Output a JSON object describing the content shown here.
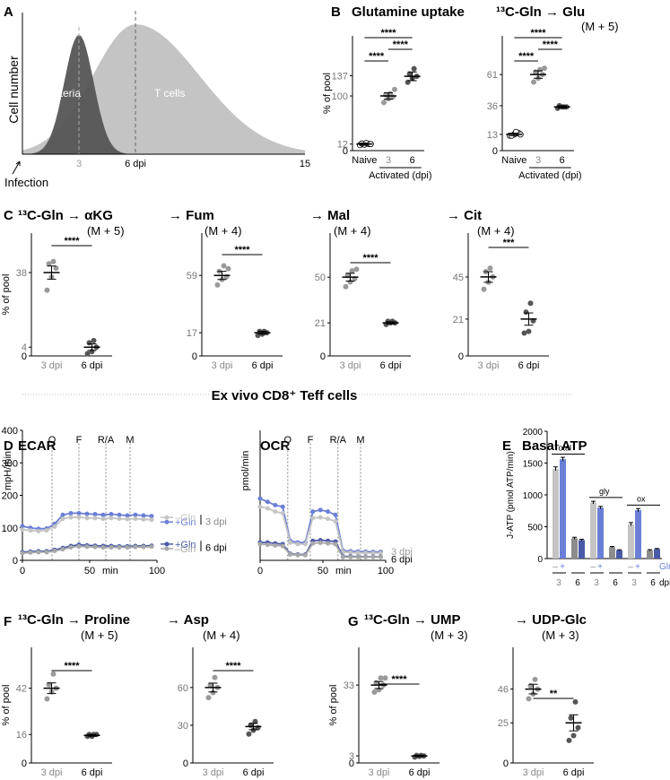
{
  "figure": {
    "panel_letters": [
      "A",
      "B",
      "C",
      "D",
      "E",
      "F",
      "G"
    ],
    "ex_vivo_title": "Ex vivo CD8⁺ Teff cells",
    "gray_color": "#9a9a9a",
    "dark_color": "#555555",
    "blue_light": "#6b7fd6",
    "blue_dark": "#4a5aa8",
    "light_gray": "#c4c4c4"
  },
  "chart_data": [
    {
      "id": "A",
      "type": "area",
      "ylabel": "Cell number",
      "xticks": [
        0,
        3,
        6,
        15
      ],
      "xtick_labels": [
        "0",
        "3",
        "6 dpi",
        "15"
      ],
      "infection_label": "Infection",
      "series": [
        {
          "name": "Bacteria",
          "peak_x": 3,
          "peak_y": 0.92,
          "spread": 1.1
        },
        {
          "name": "T cells",
          "peak_x": 6,
          "peak_y": 1.0,
          "spread": 3.2
        }
      ],
      "xlim": [
        0,
        15
      ],
      "ylim": [
        0,
        1.05
      ]
    },
    {
      "id": "B1",
      "type": "scatter",
      "title": "Glutamine uptake",
      "ylabel": "% of pool",
      "categories": [
        "Naive",
        "3",
        "6"
      ],
      "group_label": "Activated (dpi)",
      "yticks": [
        0,
        12,
        100,
        137
      ],
      "ylim": [
        0,
        210
      ],
      "means": [
        12,
        100,
        136
      ],
      "sems": [
        2,
        6,
        8
      ],
      "points": [
        [
          10,
          11,
          12,
          13,
          14,
          12
        ],
        [
          88,
          95,
          98,
          102,
          104,
          112
        ],
        [
          125,
          132,
          136,
          140,
          150
        ]
      ],
      "significance": [
        {
          "from": 0,
          "to": 1,
          "label": "****"
        },
        {
          "from": 1,
          "to": 2,
          "label": "****"
        },
        {
          "from": 0,
          "to": 2,
          "label": "****"
        }
      ]
    },
    {
      "id": "B2",
      "type": "scatter",
      "title": "¹³C-Gln → Glu",
      "subtitle": "(M + 5)",
      "categories": [
        "Naive",
        "3",
        "6"
      ],
      "group_label": "Activated (dpi)",
      "yticks": [
        0,
        13,
        36,
        61
      ],
      "ylim": [
        0,
        92
      ],
      "means": [
        13,
        61,
        35
      ],
      "sems": [
        1,
        3,
        1
      ],
      "points": [
        [
          12,
          13,
          14,
          12,
          15,
          13
        ],
        [
          55,
          58,
          61,
          63,
          65,
          66
        ],
        [
          34,
          35,
          35,
          36,
          35
        ]
      ],
      "significance": [
        {
          "from": 0,
          "to": 1,
          "label": "****"
        },
        {
          "from": 1,
          "to": 2,
          "label": "****"
        },
        {
          "from": 0,
          "to": 2,
          "label": "****"
        }
      ]
    },
    {
      "id": "C1",
      "type": "scatter",
      "title": "¹³C-Gln → αKG",
      "subtitle": "(M + 5)",
      "ylabel": "% of pool",
      "categories": [
        "3 dpi",
        "6 dpi"
      ],
      "yticks": [
        0,
        4,
        38
      ],
      "ylim": [
        0,
        56
      ],
      "means": [
        38,
        4
      ],
      "sems": [
        3,
        1.5
      ],
      "points": [
        [
          30,
          36,
          40,
          42,
          43
        ],
        [
          1,
          2,
          4,
          6,
          7
        ]
      ],
      "significance": [
        {
          "from": 0,
          "to": 1,
          "label": "****"
        }
      ]
    },
    {
      "id": "C2",
      "type": "scatter",
      "title": "→ Fum",
      "subtitle": "(M + 4)",
      "categories": [
        "3 dpi",
        "6 dpi"
      ],
      "yticks": [
        0,
        17,
        59
      ],
      "ylim": [
        0,
        90
      ],
      "means": [
        59,
        17
      ],
      "sems": [
        3,
        1
      ],
      "points": [
        [
          52,
          56,
          58,
          62,
          66,
          64
        ],
        [
          15,
          16,
          17,
          18,
          18
        ]
      ],
      "significance": [
        {
          "from": 0,
          "to": 1,
          "label": "****"
        }
      ]
    },
    {
      "id": "C3",
      "type": "scatter",
      "title": "→ Mal",
      "subtitle": "(M + 4)",
      "categories": [
        "3 dpi",
        "6 dpi"
      ],
      "yticks": [
        0,
        21,
        50
      ],
      "ylim": [
        0,
        78
      ],
      "means": [
        50,
        21
      ],
      "sems": [
        2.5,
        0.7
      ],
      "points": [
        [
          44,
          47,
          49,
          51,
          54,
          55
        ],
        [
          20,
          21,
          21,
          22,
          22
        ]
      ],
      "significance": [
        {
          "from": 0,
          "to": 1,
          "label": "****"
        }
      ]
    },
    {
      "id": "C4",
      "type": "scatter",
      "title": "→ Cit",
      "subtitle": "(M + 4)",
      "categories": [
        "3 dpi",
        "6 dpi"
      ],
      "yticks": [
        0,
        21,
        45
      ],
      "ylim": [
        0,
        70
      ],
      "means": [
        45,
        21
      ],
      "sems": [
        3,
        3.5
      ],
      "points": [
        [
          38,
          42,
          45,
          48,
          50
        ],
        [
          13,
          14,
          20,
          25,
          30
        ]
      ],
      "significance": [
        {
          "from": 0,
          "to": 1,
          "label": "***"
        }
      ]
    },
    {
      "id": "D1",
      "type": "line",
      "title": "ECAR",
      "ylabel": "mpH/min",
      "xlabel": "min",
      "xticks": [
        0,
        50,
        100
      ],
      "yticks": [
        0,
        100,
        200,
        300,
        400
      ],
      "xlim": [
        0,
        100
      ],
      "ylim": [
        0,
        400
      ],
      "injections": [
        {
          "x": 22,
          "label": "O"
        },
        {
          "x": 42,
          "label": "F"
        },
        {
          "x": 62,
          "label": "R/A"
        },
        {
          "x": 80,
          "label": "M"
        }
      ],
      "x": [
        0,
        6,
        12,
        18,
        24,
        30,
        36,
        42,
        48,
        54,
        60,
        66,
        72,
        78,
        84,
        90,
        96
      ],
      "series": [
        {
          "name": "+Gln",
          "group": "3 dpi",
          "values": [
            105,
            100,
            97,
            98,
            112,
            140,
            145,
            145,
            143,
            142,
            140,
            142,
            140,
            138,
            140,
            138,
            136
          ]
        },
        {
          "name": "–Gln",
          "group": "3 dpi",
          "values": [
            95,
            92,
            90,
            92,
            104,
            128,
            132,
            133,
            130,
            130,
            128,
            130,
            128,
            127,
            128,
            126,
            125
          ]
        },
        {
          "name": "+Gln",
          "group": "6 dpi",
          "values": [
            25,
            27,
            28,
            28,
            32,
            38,
            44,
            48,
            46,
            45,
            44,
            44,
            43,
            43,
            44,
            44,
            45
          ]
        },
        {
          "name": "–Gln",
          "group": "6 dpi",
          "values": [
            22,
            24,
            25,
            25,
            29,
            34,
            40,
            43,
            42,
            41,
            40,
            40,
            40,
            40,
            41,
            41,
            42
          ]
        }
      ],
      "legend_groups": [
        "3 dpi",
        "6 dpi"
      ]
    },
    {
      "id": "D2",
      "type": "line",
      "title": "OCR",
      "ylabel": "pmol/min",
      "xlabel": "min",
      "xticks": [
        0,
        50,
        100
      ],
      "yticks": [],
      "xlim": [
        0,
        100
      ],
      "ylim": [
        0,
        400
      ],
      "injections": [
        {
          "x": 22,
          "label": "O"
        },
        {
          "x": 40,
          "label": "F"
        },
        {
          "x": 62,
          "label": "R/A"
        },
        {
          "x": 80,
          "label": "M"
        }
      ],
      "x": [
        0,
        6,
        12,
        18,
        24,
        30,
        36,
        42,
        48,
        54,
        60,
        66,
        72,
        78,
        84,
        90,
        96
      ],
      "series": [
        {
          "name": "+Gln",
          "group": "3 dpi",
          "values": [
            190,
            180,
            170,
            165,
            60,
            55,
            55,
            150,
            155,
            150,
            140,
            30,
            28,
            27,
            27,
            26,
            26
          ]
        },
        {
          "name": "–Gln",
          "group": "3 dpi",
          "values": [
            165,
            160,
            150,
            145,
            55,
            50,
            50,
            130,
            132,
            128,
            120,
            26,
            24,
            23,
            23,
            22,
            22
          ]
        },
        {
          "name": "+Gln",
          "group": "6 dpi",
          "values": [
            55,
            55,
            52,
            50,
            20,
            18,
            18,
            60,
            62,
            60,
            58,
            12,
            12,
            11,
            11,
            11,
            11
          ]
        },
        {
          "name": "–Gln",
          "group": "6 dpi",
          "values": [
            50,
            48,
            46,
            44,
            18,
            16,
            16,
            52,
            54,
            52,
            50,
            10,
            10,
            10,
            10,
            10,
            10
          ]
        }
      ],
      "legend_groups": [
        "3 dpi",
        "6 dpi"
      ]
    },
    {
      "id": "E",
      "type": "bar",
      "title": "Basal ATP",
      "ylabel": "J-ATP (pmol ATP/min)",
      "yticks": [
        0,
        500,
        1000,
        1500,
        2000
      ],
      "ylim": [
        0,
        2000
      ],
      "groups": [
        "Total",
        "gly",
        "ox"
      ],
      "gln_labels": [
        "–",
        "+"
      ],
      "gln_suffix": "Gln",
      "dpi_labels": [
        "3",
        "6"
      ],
      "dpi_suffix": "dpi",
      "values": [
        [
          1410,
          1560,
          320,
          290
        ],
        [
          880,
          800,
          180,
          130
        ],
        [
          540,
          760,
          130,
          150
        ]
      ],
      "errors": [
        [
          30,
          30,
          15,
          12
        ],
        [
          20,
          20,
          10,
          8
        ],
        [
          25,
          25,
          10,
          8
        ]
      ]
    },
    {
      "id": "F1",
      "type": "scatter",
      "title": "¹³C-Gln → Proline",
      "subtitle": "(M + 5)",
      "ylabel": "% of pool",
      "categories": [
        "3 dpi",
        "6 dpi"
      ],
      "yticks": [
        0,
        16,
        42
      ],
      "ylim": [
        0,
        65
      ],
      "means": [
        42,
        15.5
      ],
      "sems": [
        3,
        0.5
      ],
      "points": [
        [
          36,
          40,
          42,
          44,
          50
        ],
        [
          15,
          15,
          16,
          16,
          16
        ]
      ],
      "significance": [
        {
          "from": 0,
          "to": 1,
          "label": "****"
        }
      ]
    },
    {
      "id": "F2",
      "type": "scatter",
      "title": "→ Asp",
      "subtitle": "(M + 4)",
      "categories": [
        "3 dpi",
        "6 dpi"
      ],
      "yticks": [
        0,
        30,
        60
      ],
      "ylim": [
        0,
        92
      ],
      "means": [
        60,
        29
      ],
      "sems": [
        3.5,
        2.5
      ],
      "points": [
        [
          52,
          56,
          60,
          62,
          68
        ],
        [
          23,
          26,
          28,
          30,
          33
        ]
      ],
      "significance": [
        {
          "from": 0,
          "to": 1,
          "label": "****"
        }
      ]
    },
    {
      "id": "G1",
      "type": "scatter",
      "title": "¹³C-Gln → UMP",
      "subtitle": "(M + 3)",
      "ylabel": "% of pool",
      "categories": [
        "3 dpi",
        "6 dpi"
      ],
      "yticks": [
        0,
        3,
        33
      ],
      "ylim": [
        0,
        49
      ],
      "means": [
        33,
        3
      ],
      "sems": [
        1.5,
        0.3
      ],
      "points": [
        [
          30,
          31,
          33,
          34,
          36,
          36
        ],
        [
          2.5,
          2.8,
          3,
          3.2,
          3.2
        ]
      ],
      "significance": [
        {
          "from": 0,
          "to": 1,
          "label": "****"
        }
      ]
    },
    {
      "id": "G2",
      "type": "scatter",
      "title": "→ UDP-Glc",
      "subtitle": "(M + 3)",
      "categories": [
        "3 dpi",
        "6 dpi"
      ],
      "yticks": [
        0,
        25,
        46
      ],
      "ylim": [
        0,
        72
      ],
      "means": [
        46,
        25
      ],
      "sems": [
        3,
        5
      ],
      "points": [
        [
          40,
          43,
          46,
          48,
          52
        ],
        [
          14,
          17,
          22,
          28,
          38
        ]
      ],
      "significance": [
        {
          "from": 0,
          "to": 1,
          "label": "**"
        }
      ]
    }
  ]
}
